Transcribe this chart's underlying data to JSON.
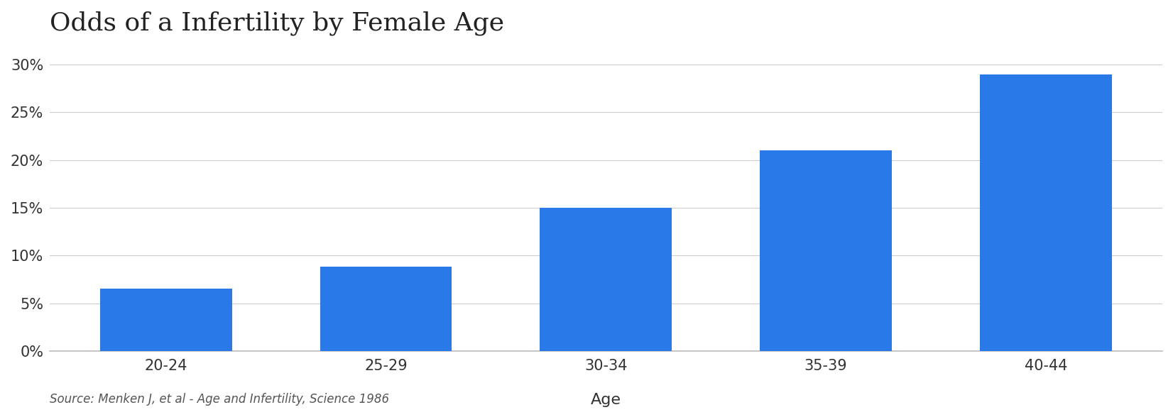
{
  "title": "Odds of a Infertility by Female Age",
  "xlabel": "Age",
  "source_text": "Source: Menken J, et al - Age and Infertility, Science 1986",
  "categories": [
    "20-24",
    "25-29",
    "30-34",
    "35-39",
    "40-44"
  ],
  "values": [
    0.065,
    0.088,
    0.15,
    0.21,
    0.29
  ],
  "bar_color": "#2979E8",
  "ylim": [
    0,
    0.32
  ],
  "yticks": [
    0.0,
    0.05,
    0.1,
    0.15,
    0.2,
    0.25,
    0.3
  ],
  "ytick_labels": [
    "0%",
    "5%",
    "10%",
    "15%",
    "20%",
    "25%",
    "30%"
  ],
  "background_color": "#FFFFFF",
  "title_fontsize": 26,
  "axis_label_fontsize": 16,
  "tick_fontsize": 15,
  "source_fontsize": 12,
  "bar_width": 0.6,
  "grid_color": "#CCCCCC",
  "spine_color": "#BBBBBB"
}
